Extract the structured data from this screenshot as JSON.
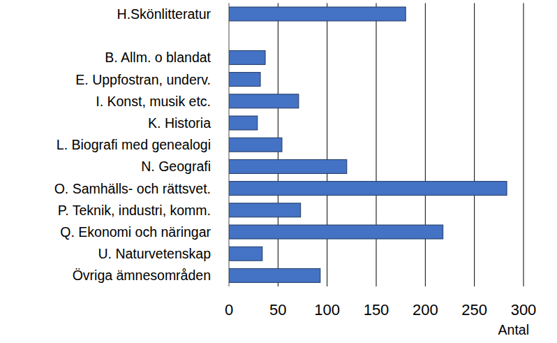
{
  "chart_data": {
    "type": "bar",
    "orientation": "horizontal",
    "categories": [
      "H.Skönlitteratur",
      null,
      "B. Allm. o blandat",
      "E. Uppfostran, underv.",
      "I. Konst, musik etc.",
      "K. Historia",
      "L. Biografi med genealogi",
      "N. Geografi",
      "O. Samhälls- och rättsvet.",
      "P. Teknik, industri, komm.",
      "Q. Ekonomi och näringar",
      "U. Naturvetenskap",
      "Övriga ämnesområden"
    ],
    "values": [
      180,
      null,
      37,
      32,
      71,
      29,
      54,
      120,
      283,
      73,
      218,
      34,
      93
    ],
    "color": "#4472c4",
    "x_label": "Antal",
    "xlim": [
      0,
      300
    ],
    "xticks": [
      0,
      50,
      100,
      150,
      200,
      250,
      300
    ],
    "grid": true
  }
}
